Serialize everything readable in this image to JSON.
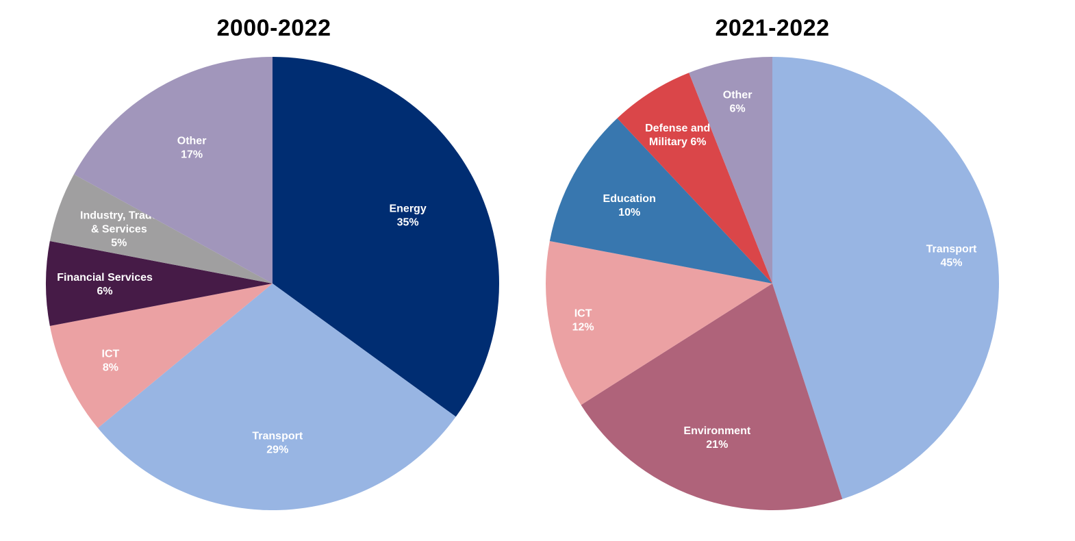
{
  "chart_data": [
    {
      "type": "pie",
      "title": "2000-2022",
      "slices": [
        {
          "label": [
            "Energy",
            "35%"
          ],
          "value": 35,
          "color": "#002D72"
        },
        {
          "label": [
            "Transport",
            "29%"
          ],
          "value": 29,
          "color": "#98B5E3"
        },
        {
          "label": [
            "ICT",
            "8%"
          ],
          "value": 8,
          "color": "#EBA1A3"
        },
        {
          "label": [
            "Financial Services",
            "6%"
          ],
          "value": 6,
          "color": "#461B47"
        },
        {
          "label": [
            "Industry, Trade",
            "& Services",
            "5%"
          ],
          "value": 5,
          "color": "#A09FA0"
        },
        {
          "label": [
            "Other",
            "17%"
          ],
          "value": 17,
          "color": "#A196BB"
        }
      ]
    },
    {
      "type": "pie",
      "title": "2021-2022",
      "slices": [
        {
          "label": [
            "Transport",
            "45%"
          ],
          "value": 45,
          "color": "#98B5E3"
        },
        {
          "label": [
            "Environment",
            "21%"
          ],
          "value": 21,
          "color": "#AF637A"
        },
        {
          "label": [
            "ICT",
            "12%"
          ],
          "value": 12,
          "color": "#EBA1A3"
        },
        {
          "label": [
            "Education",
            "10%"
          ],
          "value": 10,
          "color": "#3877AF"
        },
        {
          "label": [
            "Defense and",
            "Military 6%"
          ],
          "value": 6,
          "color": "#DA4649"
        },
        {
          "label": [
            "Other",
            "6%"
          ],
          "value": 6,
          "color": "#A196BB"
        }
      ]
    }
  ]
}
